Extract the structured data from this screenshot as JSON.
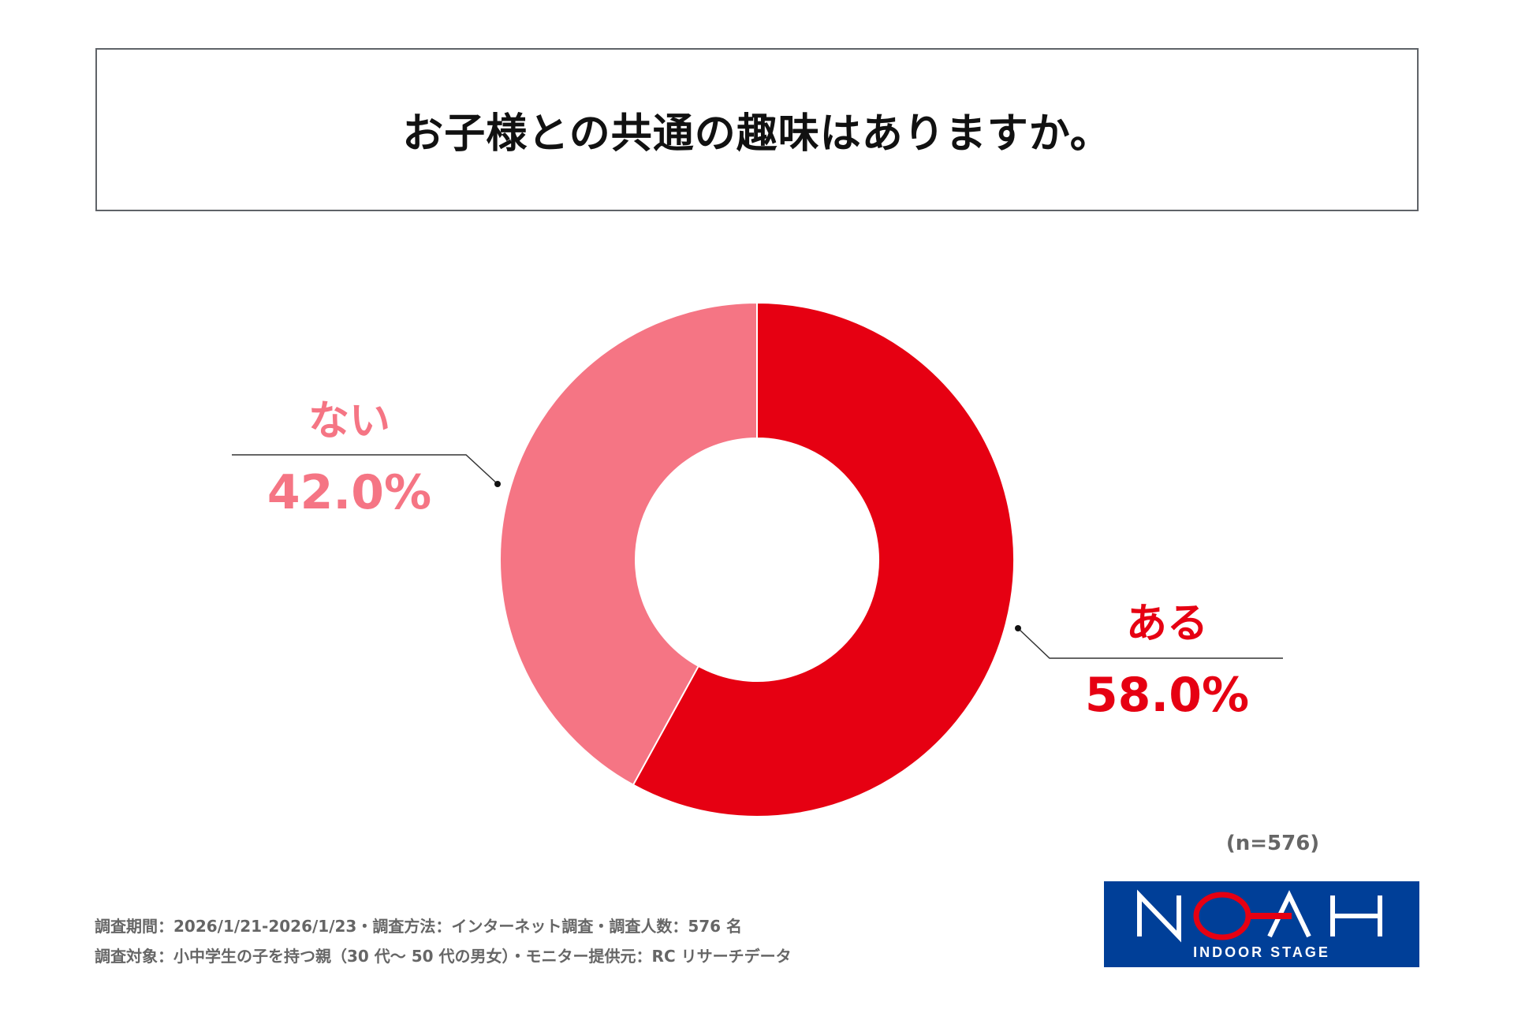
{
  "chart_data": {
    "type": "pie",
    "donut": true,
    "title": "お子様との共通の趣味はありますか。",
    "slices": [
      {
        "label": "ある",
        "value": 58.0,
        "value_label": "58.0%",
        "color": "#e60012"
      },
      {
        "label": "ない",
        "value": 42.0,
        "value_label": "42.0%",
        "color": "#f57584"
      }
    ],
    "start": "top",
    "direction": "clockwise",
    "sample_size": "(n=576)"
  },
  "footer": {
    "line1": "調査期間：2026/1/21-2026/1/23・調査方法：インターネット調査・調査人数：576 名",
    "line2": "調査対象：小中学生の子を持つ親（30 代～ 50 代の男女）・モニター提供元：RC リサーチデータ"
  },
  "logo": {
    "text": "NOAH",
    "subtext": "INDOOR STAGE",
    "bg_color": "#003f98",
    "accent_color": "#e60012"
  }
}
